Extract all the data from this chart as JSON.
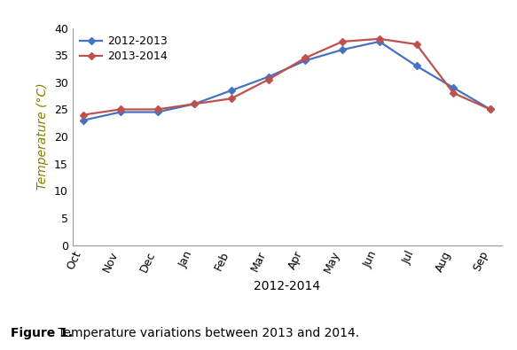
{
  "months": [
    "Oct",
    "Nov",
    "Dec",
    "Jan",
    "Feb",
    "Mar",
    "Apr",
    "May",
    "Jun",
    "Jul",
    "Aug",
    "Sep"
  ],
  "series": [
    {
      "label": "2012-2013",
      "color": "#4472C4",
      "values": [
        23,
        24.5,
        24.5,
        26,
        28.5,
        31,
        34,
        36,
        37.5,
        33,
        29,
        25
      ]
    },
    {
      "label": "2013-2014",
      "color": "#C0504D",
      "values": [
        24,
        25,
        25,
        26,
        27,
        30.5,
        34.5,
        37.5,
        38,
        37,
        28,
        25
      ]
    }
  ],
  "xlabel": "2012-2014",
  "ylabel": "Temperature (°C)",
  "ylim": [
    0,
    40
  ],
  "yticks": [
    0,
    5,
    10,
    15,
    20,
    25,
    30,
    35,
    40
  ],
  "figure_caption_bold": "Figure 1.",
  "figure_caption_normal": " Temperature variations between 2013 and 2014.",
  "background_color": "#ffffff",
  "marker": "D",
  "marker_size": 4,
  "linewidth": 1.6,
  "ylabel_color": "#808000",
  "tick_fontsize": 9,
  "xlabel_fontsize": 10,
  "ylabel_fontsize": 10,
  "legend_fontsize": 9,
  "caption_fontsize": 10
}
